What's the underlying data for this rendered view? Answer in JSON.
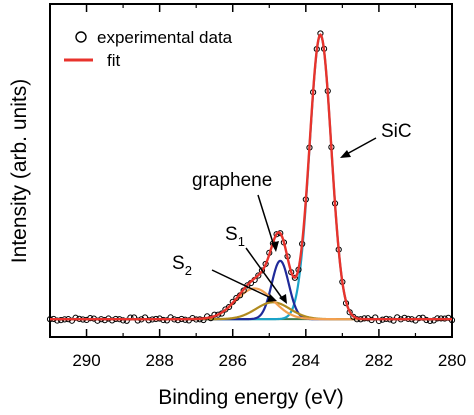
{
  "chart_data": {
    "type": "line",
    "title": "",
    "xlabel": "Binding energy (eV)",
    "ylabel": "Intensity (arb. units)",
    "xlim": [
      291,
      280
    ],
    "x_reversed": true,
    "ylim": [
      0,
      1.0
    ],
    "y_tick_labels_shown": false,
    "x_ticks": [
      290,
      288,
      286,
      284,
      282,
      280
    ],
    "x_tick_labels": [
      "290",
      "288",
      "286",
      "284",
      "282",
      "280"
    ],
    "legend": {
      "placement": "top-left",
      "entries": [
        {
          "label": "experimental data",
          "marker": "open-circle",
          "color": "#000000"
        },
        {
          "label": "fit",
          "marker": "line",
          "color": "#e8332c"
        }
      ]
    },
    "annotations": [
      {
        "text": "SiC",
        "target": "SiC"
      },
      {
        "text": "graphene",
        "target": "graphene"
      },
      {
        "text": "S",
        "sub": "1",
        "target": "S1"
      },
      {
        "text": "S",
        "sub": "2",
        "target": "S2"
      }
    ],
    "background": 0.019,
    "components": [
      {
        "id": "SiC",
        "center": 283.6,
        "height": 0.925,
        "fwhm": 0.7,
        "color": "#1aa3c8"
      },
      {
        "id": "graphene",
        "center": 284.7,
        "height": 0.19,
        "fwhm": 0.55,
        "color": "#1f2a9a"
      },
      {
        "id": "S1",
        "center": 284.9,
        "height": 0.055,
        "fwhm": 1.1,
        "color": "#b08a1e"
      },
      {
        "id": "S2",
        "center": 285.4,
        "height": 0.1,
        "fwhm": 1.2,
        "color": "#f2a050"
      }
    ],
    "baseline_color": "#3f7a4c",
    "fit_color": "#e8332c",
    "data_x_range": [
      291,
      280
    ],
    "data_step": 0.1,
    "data_marker_color": "#000000"
  }
}
